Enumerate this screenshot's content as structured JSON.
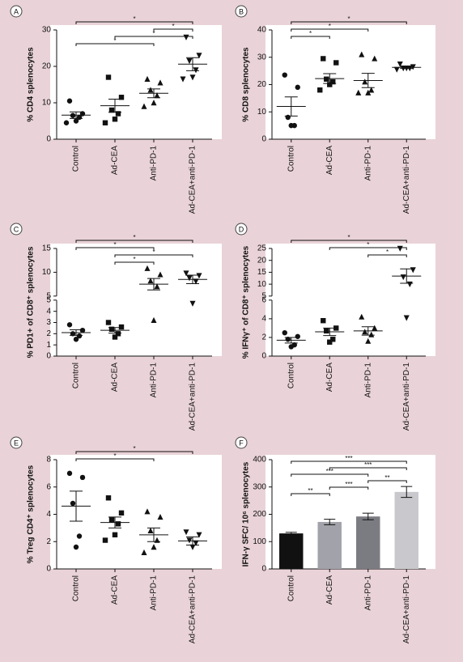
{
  "chart_data": [
    {
      "type": "dot",
      "panel": "A",
      "ylabel": "% CD4 splenocytes",
      "categories": [
        "Control",
        "Ad-CEA",
        "Anti-PD-1",
        "Ad-CEA+anti-PD-1"
      ],
      "markers": [
        "circle",
        "square",
        "triangle",
        "triangle-down"
      ],
      "points": [
        [
          10.5,
          7,
          6.5,
          6,
          5,
          4.5
        ],
        [
          17,
          11.5,
          8,
          7,
          5.5,
          4.5
        ],
        [
          16.5,
          15.5,
          13.5,
          12,
          10,
          9
        ],
        [
          28,
          23,
          21.5,
          19,
          17,
          16.5
        ]
      ],
      "means": [
        6.6,
        9.2,
        12.6,
        20.6
      ],
      "errors": [
        0.9,
        1.8,
        1.2,
        1.8
      ],
      "ylim": [
        0,
        30
      ],
      "yticks": [
        0,
        10,
        20,
        30
      ],
      "brackets": [
        {
          "from": 0,
          "to": 3,
          "label": "*"
        },
        {
          "from": 2,
          "to": 3,
          "label": "*"
        },
        {
          "from": 1,
          "to": 3,
          "label": "*"
        },
        {
          "from": 0,
          "to": 2,
          "label": "*"
        }
      ]
    },
    {
      "type": "dot",
      "panel": "B",
      "ylabel": "% CD8 splenocytes",
      "categories": [
        "Control",
        "Ad-CEA",
        "Anti-PD-1",
        "Ad-CEA+anti-PD-1"
      ],
      "markers": [
        "circle",
        "square",
        "triangle",
        "triangle-down"
      ],
      "points": [
        [
          23.5,
          19,
          8,
          5,
          5
        ],
        [
          29.5,
          28,
          22,
          21,
          20,
          18
        ],
        [
          31,
          29.5,
          21,
          18,
          17,
          17
        ],
        [
          27.5,
          26.5,
          26,
          26,
          26,
          25.5
        ]
      ],
      "means": [
        12,
        22.2,
        21.5,
        26.3
      ],
      "errors": [
        3.5,
        1.8,
        2.6,
        0.4
      ],
      "ylim": [
        0,
        40
      ],
      "yticks": [
        0,
        10,
        20,
        30,
        40
      ],
      "brackets": [
        {
          "from": 0,
          "to": 3,
          "label": "*"
        },
        {
          "from": 0,
          "to": 2,
          "label": "*"
        },
        {
          "from": 0,
          "to": 1,
          "label": "*"
        }
      ]
    },
    {
      "type": "dot",
      "panel": "C",
      "ylabel": "% PD1+ of CD8⁺ splenocytes",
      "categories": [
        "Control",
        "Ad-CEA",
        "Anti-PD-1",
        "Ad-CEA+anti-PD-1"
      ],
      "markers": [
        "circle",
        "square",
        "triangle",
        "triangle-down"
      ],
      "points": [
        [
          2.8,
          2.3,
          2.0,
          1.8,
          1.5
        ],
        [
          3.0,
          2.6,
          2.4,
          2.0,
          1.7
        ],
        [
          10.8,
          9.5,
          8.2,
          7.0,
          3.2
        ],
        [
          9.8,
          9.3,
          8.8,
          8.1,
          4.7
        ]
      ],
      "means": [
        2.1,
        2.3,
        7.5,
        8.5
      ],
      "errors": [
        0.25,
        0.25,
        1.2,
        0.9
      ],
      "segments": [
        {
          "ylim": [
            0,
            5
          ],
          "yticks": [
            0,
            1,
            2,
            3,
            4,
            5
          ]
        },
        {
          "ylim": [
            5,
            15
          ],
          "yticks": [
            5,
            10,
            15
          ]
        }
      ],
      "brackets": [
        {
          "from": 0,
          "to": 3,
          "label": "*"
        },
        {
          "from": 0,
          "to": 2,
          "label": "*"
        },
        {
          "from": 1,
          "to": 3,
          "label": "*"
        },
        {
          "from": 1,
          "to": 2,
          "label": "*"
        }
      ]
    },
    {
      "type": "dot",
      "panel": "D",
      "ylabel": "% IFNγ⁺ of CD8⁺ splenocytes",
      "categories": [
        "Control",
        "Ad-CEA",
        "Anti-PD-1",
        "Ad-CEA+anti-PD-1"
      ],
      "markers": [
        "circle",
        "square",
        "triangle",
        "triangle-down"
      ],
      "points": [
        [
          2.5,
          2.1,
          1.8,
          1.2,
          1.0
        ],
        [
          3.8,
          3.0,
          2.7,
          1.8,
          1.5
        ],
        [
          4.2,
          3.0,
          2.6,
          2.3,
          1.6
        ],
        [
          25,
          16,
          13,
          10,
          4.1
        ]
      ],
      "means": [
        1.7,
        2.6,
        2.7,
        13.4
      ],
      "errors": [
        0.3,
        0.4,
        0.45,
        3.0
      ],
      "segments": [
        {
          "ylim": [
            0,
            6
          ],
          "yticks": [
            0,
            2,
            4,
            6
          ]
        },
        {
          "ylim": [
            5,
            25
          ],
          "yticks": [
            5,
            10,
            15,
            20,
            25
          ]
        }
      ],
      "brackets": [
        {
          "from": 0,
          "to": 3,
          "label": "*"
        },
        {
          "from": 1,
          "to": 3,
          "label": "*"
        },
        {
          "from": 2,
          "to": 3,
          "label": "*"
        }
      ]
    },
    {
      "type": "dot",
      "panel": "E",
      "ylabel": "% Treg CD4⁺ splenocytes",
      "categories": [
        "Control",
        "Ad-CEA",
        "Anti-PD-1",
        "Ad-CEA+anti-PD-1"
      ],
      "markers": [
        "circle",
        "square",
        "triangle",
        "triangle-down"
      ],
      "points": [
        [
          7,
          6.7,
          4.8,
          2.4,
          1.6
        ],
        [
          5.2,
          4.1,
          3.6,
          3.3,
          2.5,
          2.1
        ],
        [
          4.2,
          3.8,
          2.8,
          2.1,
          1.6,
          1.2
        ],
        [
          2.7,
          2.5,
          2.1,
          1.9,
          1.6
        ]
      ],
      "means": [
        4.6,
        3.4,
        2.5,
        2.05
      ],
      "errors": [
        1.1,
        0.4,
        0.5,
        0.3
      ],
      "ylim": [
        0,
        8
      ],
      "yticks": [
        0,
        2,
        4,
        6,
        8
      ],
      "brackets": [
        {
          "from": 0,
          "to": 3,
          "label": "*"
        },
        {
          "from": 0,
          "to": 2,
          "label": "*"
        }
      ]
    },
    {
      "type": "bar",
      "panel": "F",
      "ylabel": "IFN-γ SFC/ 10⁶ splenocytes",
      "categories": [
        "Control",
        "Ad-CEA",
        "Anti-PD-1",
        "Ad-CEA+anti-PD-1"
      ],
      "values": [
        130,
        172,
        192,
        282
      ],
      "errors": [
        4,
        10,
        12,
        20
      ],
      "colors": [
        "#111111",
        "#a2a2aa",
        "#7b7b82",
        "#c9c9cd"
      ],
      "ylim": [
        0,
        400
      ],
      "yticks": [
        0,
        100,
        200,
        300,
        400
      ],
      "brackets": [
        {
          "from": 0,
          "to": 3,
          "label": "***"
        },
        {
          "from": 1,
          "to": 3,
          "label": "***"
        },
        {
          "from": 0,
          "to": 2,
          "label": "***"
        },
        {
          "from": 2,
          "to": 3,
          "label": "**"
        },
        {
          "from": 1,
          "to": 2,
          "label": "***"
        },
        {
          "from": 0,
          "to": 1,
          "label": "**"
        }
      ]
    }
  ]
}
